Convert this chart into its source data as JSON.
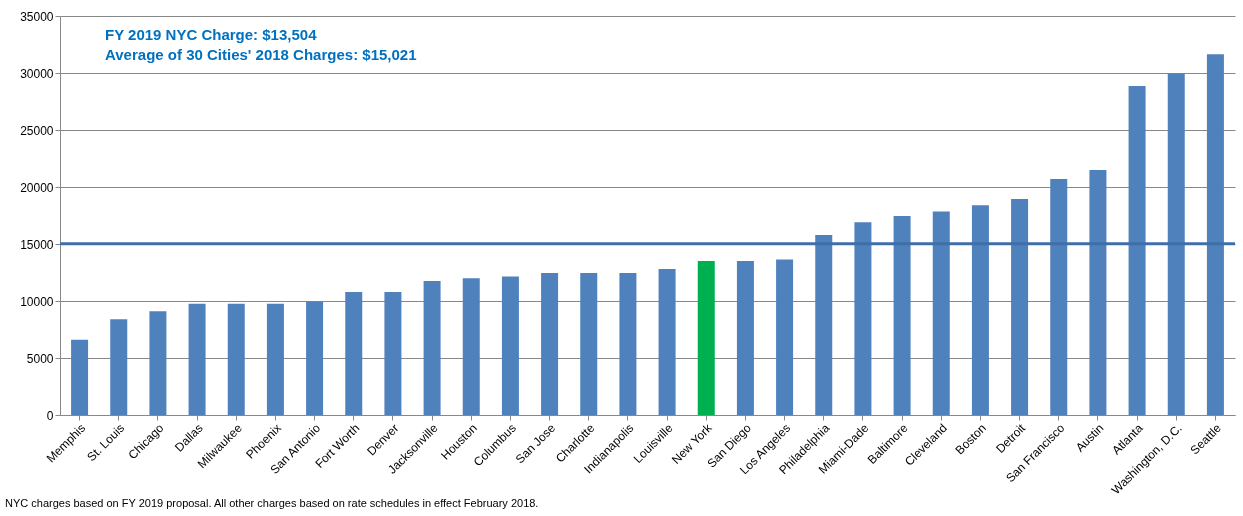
{
  "chart_data": {
    "type": "bar",
    "categories": [
      "Memphis",
      "St. Louis",
      "Chicago",
      "Dallas",
      "Milwaukee",
      "Phoenix",
      "San Antonio",
      "Fort Worth",
      "Denver",
      "Jacksonville",
      "Houston",
      "Columbus",
      "San Jose",
      "Charlotte",
      "Indianapolis",
      "Louisville",
      "New York",
      "San Diego",
      "Los Angeles",
      "Philadelphia",
      "Miami-Dade",
      "Baltimore",
      "Cleveland",
      "Boston",
      "Detroit",
      "San Francisco",
      "Austin",
      "Atlanta",
      "Washington, D.C.",
      "Seattle"
    ],
    "values": [
      6600,
      8400,
      9100,
      9750,
      9750,
      9750,
      9950,
      10800,
      10800,
      11750,
      12000,
      12150,
      12450,
      12450,
      12450,
      12800,
      13504,
      13500,
      13650,
      15800,
      16900,
      17450,
      17850,
      18400,
      18950,
      20700,
      21500,
      28850,
      29950,
      31650
    ],
    "colors": [
      "#4f81bd",
      "#4f81bd",
      "#4f81bd",
      "#4f81bd",
      "#4f81bd",
      "#4f81bd",
      "#4f81bd",
      "#4f81bd",
      "#4f81bd",
      "#4f81bd",
      "#4f81bd",
      "#4f81bd",
      "#4f81bd",
      "#4f81bd",
      "#4f81bd",
      "#4f81bd",
      "#00b050",
      "#4f81bd",
      "#4f81bd",
      "#4f81bd",
      "#4f81bd",
      "#4f81bd",
      "#4f81bd",
      "#4f81bd",
      "#4f81bd",
      "#4f81bd",
      "#4f81bd",
      "#4f81bd",
      "#4f81bd",
      "#4f81bd"
    ],
    "ylim": [
      0,
      35000
    ],
    "yticks": [
      0,
      5000,
      10000,
      15000,
      20000,
      25000,
      30000,
      35000
    ],
    "grid": "y",
    "ref_lines": [
      {
        "axis": "y",
        "value": 15021,
        "color": "#3f6fa8"
      }
    ],
    "annotations": [
      "FY 2019 NYC Charge: $13,504",
      "Average of 30 Cities' 2018 Charges: $15,021",
      "NYC charges based on FY 2019 proposal. All other charges based on rate schedules in effect February 2018."
    ]
  }
}
